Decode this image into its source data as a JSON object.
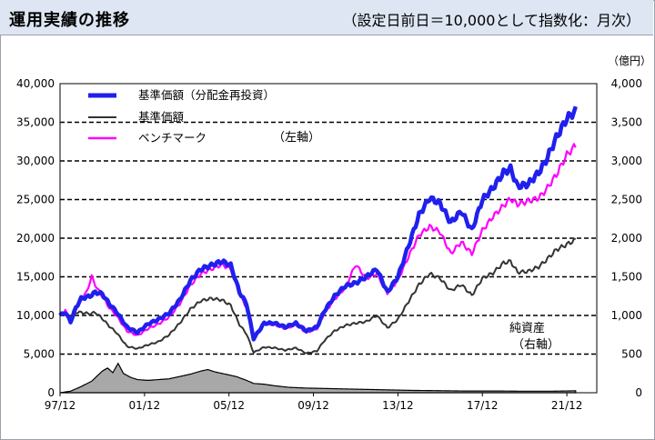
{
  "header": {
    "title": "運用実績の推移",
    "subtitle": "（設定日前日＝10,000として指数化：月次）"
  },
  "colors": {
    "fund_reinvested": "#2020ee",
    "fund_nav": "#333333",
    "benchmark": "#ff00ff",
    "net_assets_fill": "#a8a8a8",
    "header_bg": "#dde6f2"
  },
  "chart_data": {
    "type": "line",
    "x_start": "1997-12",
    "x_step_months": 1,
    "n_points": 306,
    "xlabel": "",
    "x_tick_labels": [
      "97/12",
      "01/12",
      "05/12",
      "09/12",
      "13/12",
      "17/12",
      "21/12"
    ],
    "ylim_left": [
      0,
      40000
    ],
    "ylim_right": [
      0,
      4000
    ],
    "y_left_ticks": [
      "0",
      "5,000",
      "10,000",
      "15,000",
      "20,000",
      "25,000",
      "30,000",
      "35,000",
      "40,000"
    ],
    "y_right_ticks": [
      "0",
      "500",
      "1,000",
      "1,500",
      "2,000",
      "2,500",
      "3,000",
      "3,500",
      "4,000"
    ],
    "right_unit": "（億円）",
    "left_axis_note": "（左軸）",
    "right_axis_note_1": "純資産",
    "right_axis_note_2": "（右軸）",
    "grid": "dashed horizontal",
    "legend_position": "top-left",
    "series": [
      {
        "name": "基準価額（分配金再投資）",
        "axis": "left",
        "style": "thick",
        "anchors": [
          [
            0,
            10000
          ],
          [
            3,
            10400
          ],
          [
            6,
            9200
          ],
          [
            9,
            11000
          ],
          [
            12,
            12200
          ],
          [
            17,
            12500
          ],
          [
            20,
            13000
          ],
          [
            24,
            12800
          ],
          [
            28,
            11500
          ],
          [
            32,
            10500
          ],
          [
            38,
            8500
          ],
          [
            44,
            7800
          ],
          [
            50,
            8900
          ],
          [
            56,
            9500
          ],
          [
            62,
            10300
          ],
          [
            68,
            12000
          ],
          [
            74,
            14500
          ],
          [
            80,
            16000
          ],
          [
            86,
            16500
          ],
          [
            92,
            17000
          ],
          [
            97,
            16500
          ],
          [
            102,
            13000
          ],
          [
            106,
            11500
          ],
          [
            110,
            7000
          ],
          [
            116,
            9000
          ],
          [
            122,
            9000
          ],
          [
            128,
            8500
          ],
          [
            134,
            9000
          ],
          [
            140,
            8000
          ],
          [
            146,
            8500
          ],
          [
            150,
            10500
          ],
          [
            156,
            12500
          ],
          [
            162,
            13800
          ],
          [
            168,
            14200
          ],
          [
            174,
            15000
          ],
          [
            180,
            16000
          ],
          [
            186,
            13000
          ],
          [
            192,
            15000
          ],
          [
            198,
            19000
          ],
          [
            204,
            23000
          ],
          [
            210,
            25200
          ],
          [
            216,
            24500
          ],
          [
            222,
            22000
          ],
          [
            228,
            23500
          ],
          [
            234,
            21000
          ],
          [
            240,
            25000
          ],
          [
            246,
            26500
          ],
          [
            252,
            28500
          ],
          [
            256,
            29000
          ],
          [
            260,
            26700
          ],
          [
            266,
            27000
          ],
          [
            272,
            28500
          ],
          [
            276,
            30000
          ],
          [
            282,
            33000
          ],
          [
            288,
            35500
          ],
          [
            293,
            36500
          ]
        ]
      },
      {
        "name": "基準価額",
        "axis": "left",
        "style": "thin",
        "anchors": [
          [
            0,
            10000
          ],
          [
            3,
            10200
          ],
          [
            6,
            9100
          ],
          [
            9,
            10400
          ],
          [
            12,
            10400
          ],
          [
            17,
            10200
          ],
          [
            20,
            10400
          ],
          [
            24,
            9600
          ],
          [
            28,
            8600
          ],
          [
            32,
            7800
          ],
          [
            38,
            6000
          ],
          [
            44,
            5700
          ],
          [
            50,
            6200
          ],
          [
            56,
            6600
          ],
          [
            62,
            7500
          ],
          [
            68,
            9000
          ],
          [
            74,
            10800
          ],
          [
            80,
            11900
          ],
          [
            86,
            12200
          ],
          [
            92,
            12000
          ],
          [
            97,
            11300
          ],
          [
            102,
            8800
          ],
          [
            106,
            7600
          ],
          [
            110,
            5200
          ],
          [
            116,
            5900
          ],
          [
            122,
            5800
          ],
          [
            128,
            5500
          ],
          [
            134,
            5800
          ],
          [
            140,
            5100
          ],
          [
            146,
            5400
          ],
          [
            150,
            6700
          ],
          [
            156,
            8000
          ],
          [
            162,
            8700
          ],
          [
            168,
            9000
          ],
          [
            174,
            9200
          ],
          [
            180,
            10000
          ],
          [
            186,
            8400
          ],
          [
            192,
            9500
          ],
          [
            198,
            11800
          ],
          [
            204,
            14000
          ],
          [
            210,
            15400
          ],
          [
            216,
            14800
          ],
          [
            222,
            13200
          ],
          [
            228,
            14000
          ],
          [
            234,
            12600
          ],
          [
            240,
            14800
          ],
          [
            246,
            15500
          ],
          [
            252,
            16800
          ],
          [
            256,
            17000
          ],
          [
            260,
            15600
          ],
          [
            266,
            15700
          ],
          [
            272,
            16300
          ],
          [
            276,
            17100
          ],
          [
            282,
            18500
          ],
          [
            288,
            19200
          ],
          [
            293,
            19800
          ]
        ]
      },
      {
        "name": "ベンチマーク",
        "axis": "left",
        "style": "medium",
        "anchors": [
          [
            0,
            10000
          ],
          [
            3,
            10600
          ],
          [
            6,
            9400
          ],
          [
            9,
            10800
          ],
          [
            12,
            12000
          ],
          [
            15,
            13000
          ],
          [
            18,
            15000
          ],
          [
            21,
            13500
          ],
          [
            24,
            12500
          ],
          [
            28,
            11000
          ],
          [
            32,
            10000
          ],
          [
            38,
            8000
          ],
          [
            44,
            7400
          ],
          [
            50,
            8300
          ],
          [
            56,
            8900
          ],
          [
            62,
            9800
          ],
          [
            68,
            11500
          ],
          [
            74,
            13900
          ],
          [
            80,
            15400
          ],
          [
            86,
            16000
          ],
          [
            92,
            16600
          ],
          [
            97,
            16000
          ],
          [
            102,
            12800
          ],
          [
            106,
            11000
          ],
          [
            110,
            7200
          ],
          [
            116,
            9000
          ],
          [
            122,
            8800
          ],
          [
            128,
            8300
          ],
          [
            134,
            8800
          ],
          [
            140,
            7800
          ],
          [
            146,
            8300
          ],
          [
            150,
            10200
          ],
          [
            156,
            12100
          ],
          [
            162,
            13600
          ],
          [
            168,
            16600
          ],
          [
            174,
            14800
          ],
          [
            180,
            15400
          ],
          [
            186,
            12900
          ],
          [
            192,
            14600
          ],
          [
            198,
            17600
          ],
          [
            204,
            20400
          ],
          [
            210,
            21500
          ],
          [
            216,
            20800
          ],
          [
            222,
            18000
          ],
          [
            228,
            19500
          ],
          [
            234,
            18000
          ],
          [
            240,
            21000
          ],
          [
            246,
            22800
          ],
          [
            252,
            24200
          ],
          [
            256,
            25100
          ],
          [
            260,
            24400
          ],
          [
            266,
            24800
          ],
          [
            272,
            25200
          ],
          [
            276,
            26200
          ],
          [
            282,
            28200
          ],
          [
            288,
            30800
          ],
          [
            293,
            32000
          ]
        ]
      },
      {
        "name": "純資産",
        "axis": "right",
        "style": "area",
        "anchors": [
          [
            0,
            0
          ],
          [
            6,
            20
          ],
          [
            12,
            80
          ],
          [
            18,
            150
          ],
          [
            24,
            280
          ],
          [
            27,
            320
          ],
          [
            30,
            260
          ],
          [
            33,
            380
          ],
          [
            36,
            250
          ],
          [
            40,
            200
          ],
          [
            44,
            170
          ],
          [
            50,
            160
          ],
          [
            56,
            170
          ],
          [
            62,
            180
          ],
          [
            68,
            210
          ],
          [
            74,
            240
          ],
          [
            80,
            280
          ],
          [
            84,
            300
          ],
          [
            88,
            270
          ],
          [
            94,
            240
          ],
          [
            100,
            210
          ],
          [
            106,
            160
          ],
          [
            110,
            120
          ],
          [
            116,
            110
          ],
          [
            122,
            90
          ],
          [
            130,
            70
          ],
          [
            140,
            60
          ],
          [
            150,
            55
          ],
          [
            160,
            50
          ],
          [
            170,
            45
          ],
          [
            180,
            40
          ],
          [
            190,
            35
          ],
          [
            200,
            30
          ],
          [
            210,
            28
          ],
          [
            220,
            25
          ],
          [
            230,
            22
          ],
          [
            240,
            22
          ],
          [
            250,
            22
          ],
          [
            260,
            20
          ],
          [
            270,
            20
          ],
          [
            280,
            20
          ],
          [
            293,
            25
          ]
        ]
      }
    ]
  }
}
